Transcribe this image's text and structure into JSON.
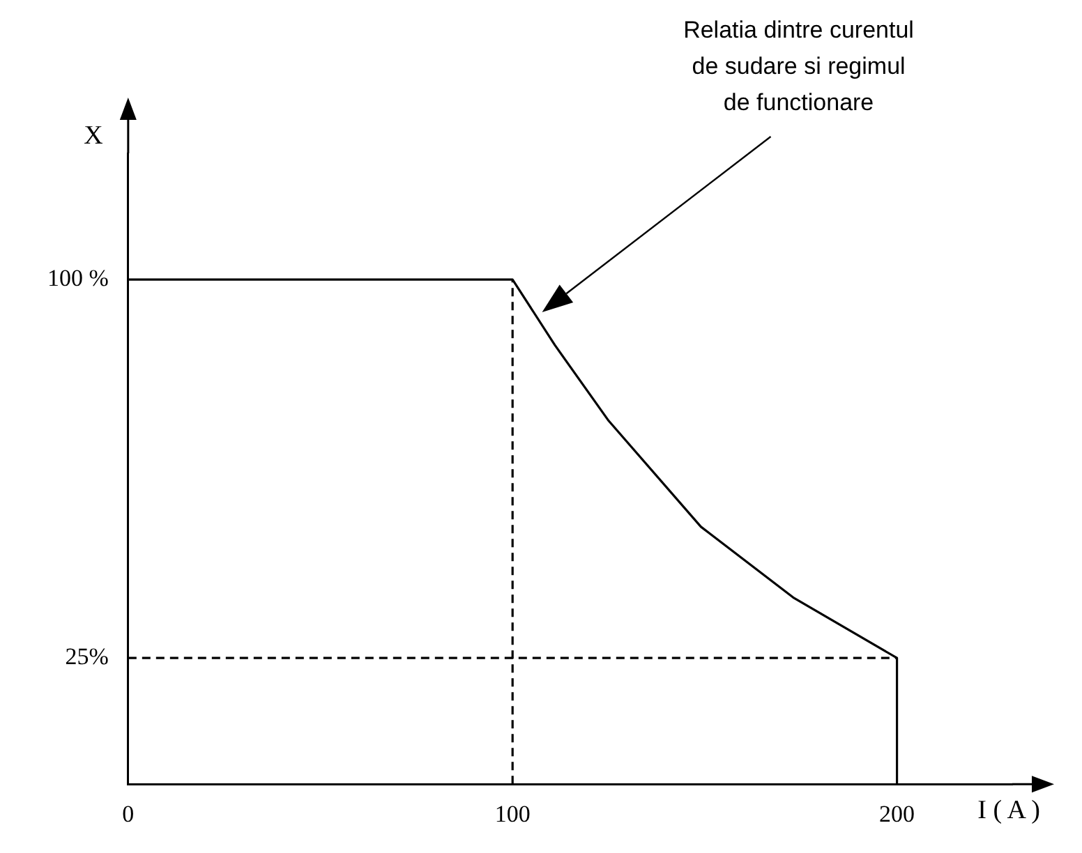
{
  "chart_data": {
    "type": "line",
    "xlabel": "I ( A )",
    "ylabel": "X",
    "series": [
      {
        "x": [
          0,
          100,
          111,
          125,
          149,
          173,
          200,
          200
        ],
        "values": [
          100,
          100,
          87,
          72,
          51,
          37,
          25,
          0
        ],
        "color": "#000000",
        "line_style": "solid"
      },
      {
        "x": [
          100,
          100
        ],
        "values": [
          0,
          100
        ],
        "color": "#000000",
        "line_style": "dashed"
      },
      {
        "x": [
          0,
          200
        ],
        "values": [
          25,
          25
        ],
        "color": "#000000",
        "line_style": "dashed"
      }
    ],
    "xlim": [
      0,
      230
    ],
    "xticks": [
      0,
      100,
      200
    ],
    "ylim": [
      0,
      125
    ],
    "yticks": [
      {
        "value": 25,
        "label": "25%"
      },
      {
        "value": 100,
        "label": "100 %"
      }
    ],
    "grid": false,
    "legend": false,
    "marker": "none",
    "annotations": [
      "Relatia dintre curentul\nde sudare si regimul\nde functionare"
    ]
  }
}
